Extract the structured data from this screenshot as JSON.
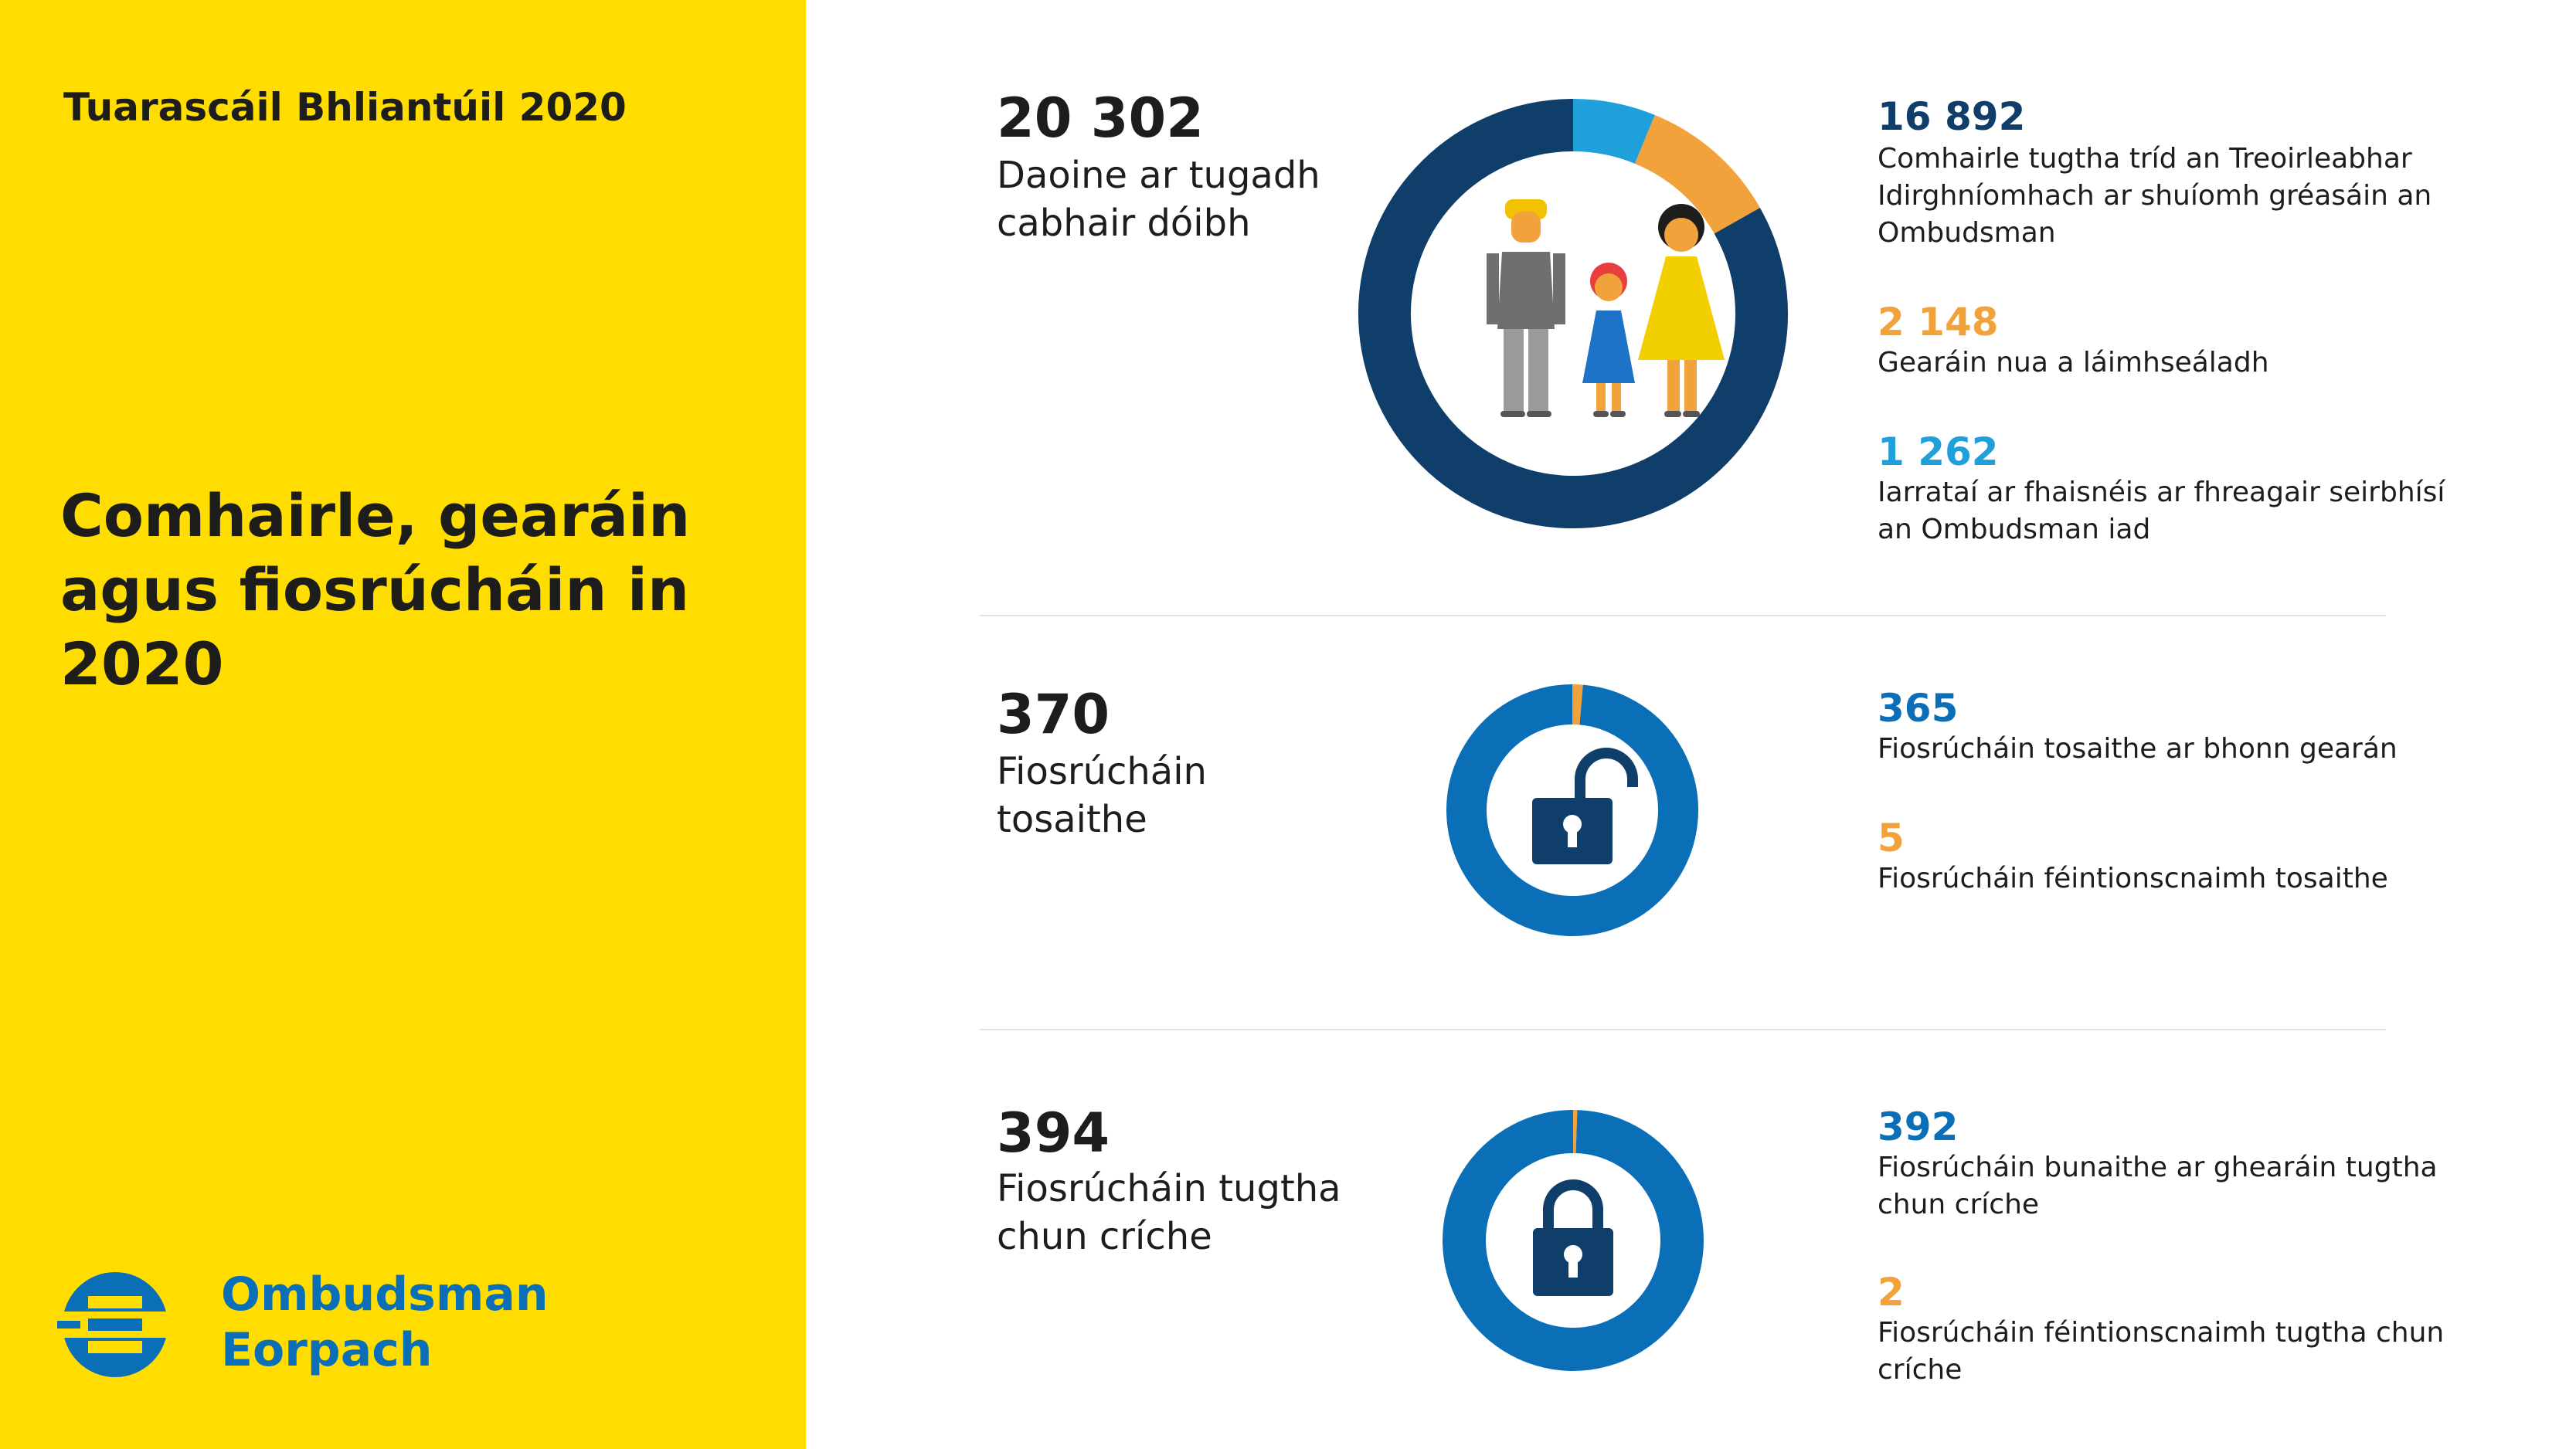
{
  "sidebar": {
    "report_title": "Tuarascáil Bhliantúil 2020",
    "main_title": "Comhairle, gearáin agus fiosrúcháin in 2020",
    "logo": {
      "line1": "Ombudsman",
      "line2": "Eorpach",
      "icon": "euro-ombudsman-logo-icon"
    }
  },
  "colors": {
    "yellow": "#FFDD00",
    "navy": "#0f3e6b",
    "orange": "#f2a23a",
    "cyan": "#1fa0db",
    "blue": "#0b6fb8"
  },
  "sections": [
    {
      "total": "20 302",
      "total_label": "Daoine ar tugadh cabhair dóibh",
      "icon": "family-icon",
      "items": [
        {
          "value": "16 892",
          "label": "Comhairle tugtha tríd an Treoirleabhar Idirghníomhach ar shuíomh gréasáin an Ombudsman"
        },
        {
          "value": "2 148",
          "label": "Gearáin nua a láimhseáladh"
        },
        {
          "value": "1 262",
          "label": "Iarrataí ar fhaisnéis ar fhreagair seirbhísí an Ombudsman iad"
        }
      ]
    },
    {
      "total": "370",
      "total_label": "Fiosrúcháin tosaithe",
      "icon": "open-padlock-icon",
      "items": [
        {
          "value": "365",
          "label": "Fiosrúcháin tosaithe ar bhonn gearán"
        },
        {
          "value": "5",
          "label": "Fiosrúcháin féintionscnaimh tosaithe"
        }
      ]
    },
    {
      "total": "394",
      "total_label": "Fiosrúcháin tugtha chun críche",
      "icon": "closed-padlock-icon",
      "items": [
        {
          "value": "392",
          "label": "Fiosrúcháin bunaithe ar ghearáin tugtha chun críche"
        },
        {
          "value": "2",
          "label": "Fiosrúcháin féintionscnaimh tugtha chun críche"
        }
      ]
    }
  ],
  "chart_data": [
    {
      "type": "pie",
      "donut": true,
      "labels": [
        "Comhairle tugtha tríd an Treoirleabhar Idirghníomhach ar shuíomh gréasáin an Ombudsman",
        "Gearáin nua a láimhseáladh",
        "Iarrataí ar fhaisnéis ar fhreagair seirbhísí an Ombudsman iad"
      ],
      "values": [
        16892,
        2148,
        1262
      ],
      "colors": [
        "#0f3e6b",
        "#f2a23a",
        "#1fa0db"
      ]
    },
    {
      "type": "pie",
      "donut": true,
      "labels": [
        "Fiosrúcháin tosaithe ar bhonn gearán",
        "Fiosrúcháin féintionscnaimh tosaithe"
      ],
      "values": [
        365,
        5
      ],
      "colors": [
        "#0b6fb8",
        "#f2a23a"
      ]
    },
    {
      "type": "pie",
      "donut": true,
      "labels": [
        "Fiosrúcháin bunaithe ar ghearáin tugtha chun críche",
        "Fiosrúcháin féintionscnaimh tugtha chun críche"
      ],
      "values": [
        392,
        2
      ],
      "colors": [
        "#0b6fb8",
        "#f2a23a"
      ]
    }
  ]
}
